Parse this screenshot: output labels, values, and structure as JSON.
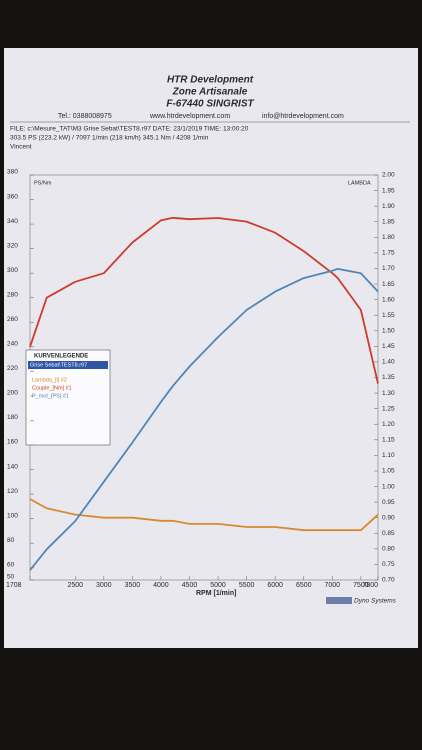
{
  "header": {
    "company": "HTR Development",
    "street": "Zone Artisanale",
    "city": "F-67440 SINGRIST",
    "phone": "Tel.: 0388008975",
    "web": "www.htrdevelopment.com",
    "email": "info@htrdevelopment.com",
    "file": "FILE: c:\\Mesure_TAT\\M3 Grise Sebat\\TEST8.r97  DATE: 23/1/2019  TIME: 13:00:20",
    "result": "303.5 PS  (223.2 kW) / 7097 1/min (218 km/h)   345.1 Nm / 4208 1/min",
    "operator": "Vincent",
    "footer": "Dyno Systems"
  },
  "chart_data": {
    "type": "line",
    "y_label": "PS/Nm",
    "y2_label": "LAMBDA",
    "x_label": "RPM  [1/min]",
    "legend_title": "KURVENLEGENDE",
    "legend_header": "Grise Sebat\\TEST8.r97",
    "x": [
      1708,
      2000,
      2500,
      3000,
      3500,
      4000,
      4208,
      4500,
      5000,
      5500,
      6000,
      6500,
      7000,
      7097,
      7500,
      7800
    ],
    "series": [
      {
        "name": "Lambda_[l] #2",
        "color": "#d9892f",
        "axis": "y2",
        "values": [
          0.96,
          0.93,
          0.91,
          0.9,
          0.9,
          0.89,
          0.89,
          0.88,
          0.88,
          0.87,
          0.87,
          0.86,
          0.86,
          0.86,
          0.86,
          0.91
        ]
      },
      {
        "name": "Couple_[Nm] #1",
        "color": "#cf3b2c",
        "values": [
          240,
          280,
          293,
          300,
          325,
          343,
          345.1,
          344,
          345,
          342,
          333,
          318,
          300,
          296,
          270,
          210
        ]
      },
      {
        "name": "P_mot_[PS] #1",
        "color": "#4f86b8",
        "values": [
          58,
          75,
          98,
          130,
          162,
          195,
          208,
          224,
          248,
          270,
          285,
          296,
          302,
          303.5,
          300,
          285
        ]
      }
    ],
    "xlim": [
      1708,
      7800
    ],
    "xticks": [
      1708,
      2500,
      3000,
      3500,
      4000,
      4500,
      5000,
      5500,
      6000,
      6500,
      7000,
      7500,
      7800
    ],
    "ylim": [
      50,
      380
    ],
    "yticks": [
      50,
      60,
      80,
      100,
      120,
      140,
      160,
      180,
      200,
      220,
      240,
      260,
      280,
      300,
      320,
      340,
      360,
      380
    ],
    "y2lim": [
      0.7,
      2
    ],
    "y2ticks": [
      {
        "value": 0.7,
        "label": "0.70"
      },
      0.75,
      {
        "value": 0.8,
        "label": "0.80"
      },
      0.85,
      {
        "value": 0.9,
        "label": "0.90"
      },
      0.95,
      {
        "value": 1,
        "label": "1.00"
      },
      1.05,
      {
        "value": 1.1,
        "label": "1.10"
      },
      1.15,
      {
        "value": 1.2,
        "label": "1.20"
      },
      1.25,
      {
        "value": 1.3,
        "label": "1.30"
      },
      1.35,
      {
        "value": 1.4,
        "label": "1.40"
      },
      1.45,
      {
        "value": 1.5,
        "label": "1.50"
      },
      1.55,
      {
        "value": 1.6,
        "label": "1.60"
      },
      1.65,
      {
        "value": 1.7,
        "label": "1.70"
      },
      1.75,
      {
        "value": 1.8,
        "label": "1.80"
      },
      1.85,
      {
        "value": 1.9,
        "label": "1.90"
      },
      1.95,
      {
        "value": 2,
        "label": "2.00"
      }
    ],
    "grid": false,
    "legend": "left"
  }
}
